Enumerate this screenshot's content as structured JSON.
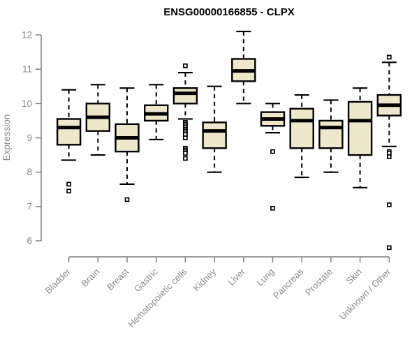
{
  "chart_data": {
    "type": "box",
    "title": "ENSG00000166855 - CLPX",
    "xlabel": "",
    "ylabel": "Expression",
    "ylim": [
      6,
      12
    ],
    "y_ticks": [
      6,
      7,
      8,
      9,
      10,
      11,
      12
    ],
    "grid": false,
    "legend_position": "none",
    "box_fill_color": "#EDE8CC",
    "box_border_color": "#000000",
    "median_color": "#000000",
    "outlier_fill_color": "#FFFFFF",
    "axis_color": "#7F7F7F",
    "tick_label_color": "#8A8A8A",
    "title_color": "#000000",
    "categories": [
      "Bladder",
      "Brain",
      "Breast",
      "Gastric",
      "Hematopoietic cells",
      "Kidney",
      "Liver",
      "Lung",
      "Pancreas",
      "Prostate",
      "Skin",
      "Unknown / Other"
    ],
    "boxes": [
      {
        "label": "Bladder",
        "whisker_low": 8.35,
        "q1": 8.8,
        "median": 9.3,
        "q3": 9.55,
        "whisker_high": 10.4,
        "outliers": [
          7.65,
          7.45
        ]
      },
      {
        "label": "Brain",
        "whisker_low": 8.5,
        "q1": 9.2,
        "median": 9.6,
        "q3": 10.0,
        "whisker_high": 10.55,
        "outliers": []
      },
      {
        "label": "Breast",
        "whisker_low": 7.65,
        "q1": 8.6,
        "median": 9.0,
        "q3": 9.4,
        "whisker_high": 10.45,
        "outliers": [
          7.2
        ]
      },
      {
        "label": "Gastric",
        "whisker_low": 8.95,
        "q1": 9.5,
        "median": 9.7,
        "q3": 9.95,
        "whisker_high": 10.55,
        "outliers": []
      },
      {
        "label": "Hematopoietic cells",
        "whisker_low": 9.55,
        "q1": 10.0,
        "median": 10.3,
        "q3": 10.45,
        "whisker_high": 10.9,
        "outliers": [
          11.1,
          9.45,
          9.4,
          9.35,
          9.3,
          9.25,
          9.2,
          9.15,
          9.1,
          9.0,
          8.7,
          8.65,
          8.6,
          8.55,
          8.4
        ]
      },
      {
        "label": "Kidney",
        "whisker_low": 8.0,
        "q1": 8.7,
        "median": 9.2,
        "q3": 9.45,
        "whisker_high": 10.5,
        "outliers": []
      },
      {
        "label": "Liver",
        "whisker_low": 10.0,
        "q1": 10.65,
        "median": 10.95,
        "q3": 11.3,
        "whisker_high": 12.1,
        "outliers": []
      },
      {
        "label": "Lung",
        "whisker_low": 9.15,
        "q1": 9.35,
        "median": 9.55,
        "q3": 9.75,
        "whisker_high": 10.0,
        "outliers": [
          8.6,
          6.95
        ]
      },
      {
        "label": "Pancreas",
        "whisker_low": 7.85,
        "q1": 8.7,
        "median": 9.5,
        "q3": 9.85,
        "whisker_high": 10.25,
        "outliers": []
      },
      {
        "label": "Prostate",
        "whisker_low": 8.0,
        "q1": 8.7,
        "median": 9.3,
        "q3": 9.5,
        "whisker_high": 10.1,
        "outliers": []
      },
      {
        "label": "Skin",
        "whisker_low": 7.55,
        "q1": 8.5,
        "median": 9.5,
        "q3": 10.05,
        "whisker_high": 10.45,
        "outliers": []
      },
      {
        "label": "Unknown / Other",
        "whisker_low": 8.75,
        "q1": 9.65,
        "median": 9.95,
        "q3": 10.25,
        "whisker_high": 11.2,
        "outliers": [
          11.35,
          8.6,
          8.55,
          8.45,
          7.05,
          5.8
        ]
      }
    ]
  }
}
